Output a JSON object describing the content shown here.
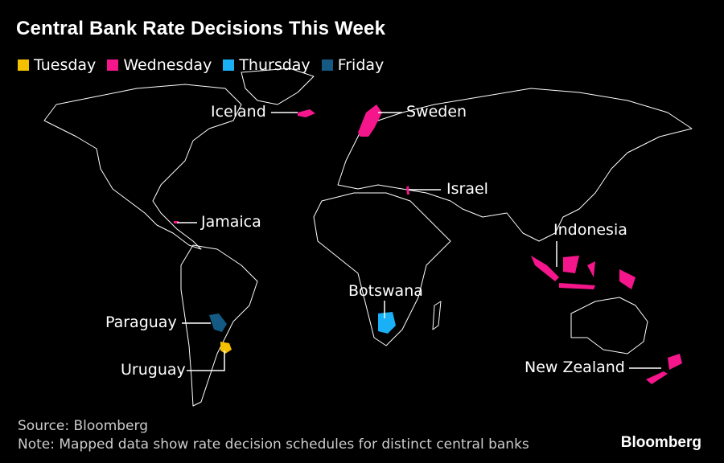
{
  "title": "Central Bank Rate Decisions This Week",
  "legend": [
    {
      "label": "Tuesday",
      "color": "#f5c000"
    },
    {
      "label": "Wednesday",
      "color": "#f5168c"
    },
    {
      "label": "Thursday",
      "color": "#1ab0f5"
    },
    {
      "label": "Friday",
      "color": "#145a82"
    }
  ],
  "countries": {
    "iceland": {
      "label": "Iceland",
      "day": "Wednesday"
    },
    "sweden": {
      "label": "Sweden",
      "day": "Wednesday"
    },
    "israel": {
      "label": "Israel",
      "day": "Wednesday"
    },
    "jamaica": {
      "label": "Jamaica",
      "day": "Wednesday"
    },
    "indonesia": {
      "label": "Indonesia",
      "day": "Wednesday"
    },
    "botswana": {
      "label": "Botswana",
      "day": "Thursday"
    },
    "paraguay": {
      "label": "Paraguay",
      "day": "Friday"
    },
    "uruguay": {
      "label": "Uruguay",
      "day": "Tuesday"
    },
    "new_zealand": {
      "label": "New Zealand",
      "day": "Wednesday"
    }
  },
  "footer": {
    "source": "Source: Bloomberg",
    "note": "Note: Mapped data show rate decision schedules for distinct central banks"
  },
  "brand": "Bloomberg"
}
